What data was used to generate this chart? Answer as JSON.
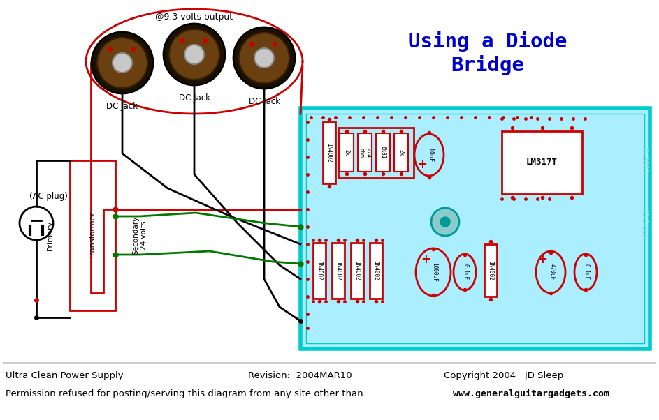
{
  "bg_color": "#ffffff",
  "pcb_color": "#aaeeff",
  "pcb_border_color": "#00cccc",
  "title": "Using a Diode\nBridge",
  "title_color": "#0000cc",
  "footer1": "Ultra Clean Power Supply",
  "footer2": "Revision:  2004MAR10",
  "footer3": "Copyright 2004   JD Sleep",
  "footer4": "Permission refused for posting/serving this diagram from any site other than",
  "footer5": "www.generalguitargadgets.com",
  "voltage_label": "@9.3 volts output",
  "red": "#cc0000",
  "green": "#007700",
  "black": "#000000",
  "pcb_text": "#88dddd",
  "jack_outer": "#1a1000",
  "jack_inner": "#6b4010",
  "jack_center": "#c8c8c8"
}
